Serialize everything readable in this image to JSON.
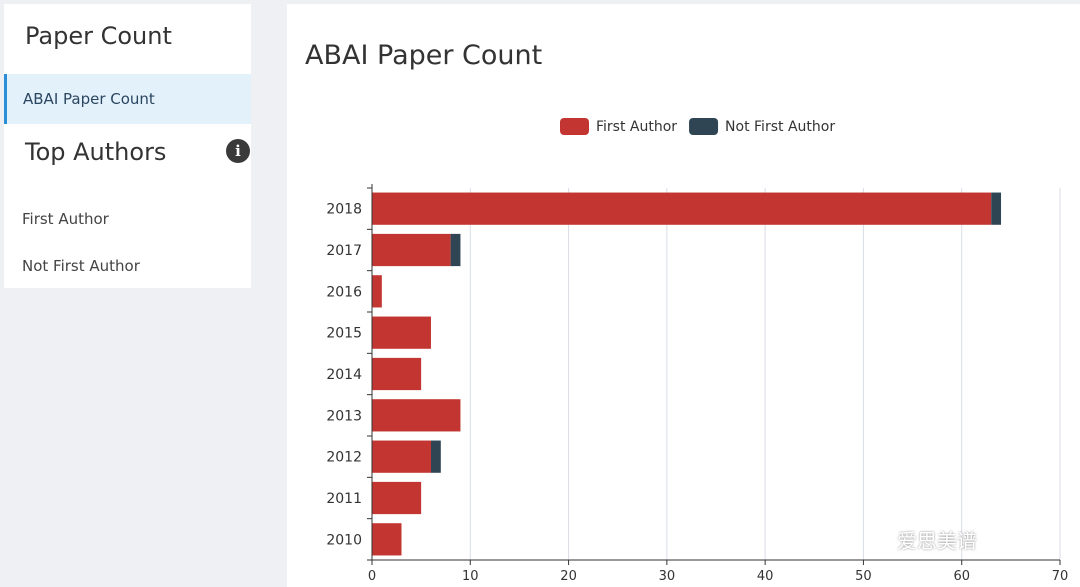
{
  "sidebar": {
    "paper_count_title": "Paper Count",
    "active_item": "ABAI Paper Count",
    "top_authors_title": "Top Authors",
    "info_icon": "info-circle-icon",
    "links": [
      "First Author",
      "Not First Author"
    ]
  },
  "main": {
    "title": "ABAI Paper Count"
  },
  "watermark": "爱思美谱",
  "chart_data": {
    "type": "bar",
    "orientation": "horizontal",
    "stacked": true,
    "categories": [
      "2018",
      "2017",
      "2016",
      "2015",
      "2014",
      "2013",
      "2012",
      "2011",
      "2010"
    ],
    "series": [
      {
        "name": "First Author",
        "color": "#c23531",
        "values": [
          63,
          8,
          1,
          6,
          5,
          9,
          6,
          5,
          3
        ]
      },
      {
        "name": "Not First Author",
        "color": "#2f4554",
        "values": [
          1,
          1,
          0,
          0,
          0,
          0,
          1,
          0,
          0
        ]
      }
    ],
    "xlim": [
      0,
      70
    ],
    "xticks": [
      0,
      10,
      20,
      30,
      40,
      50,
      60,
      70
    ],
    "grid": true,
    "legend_position": "top-center"
  }
}
